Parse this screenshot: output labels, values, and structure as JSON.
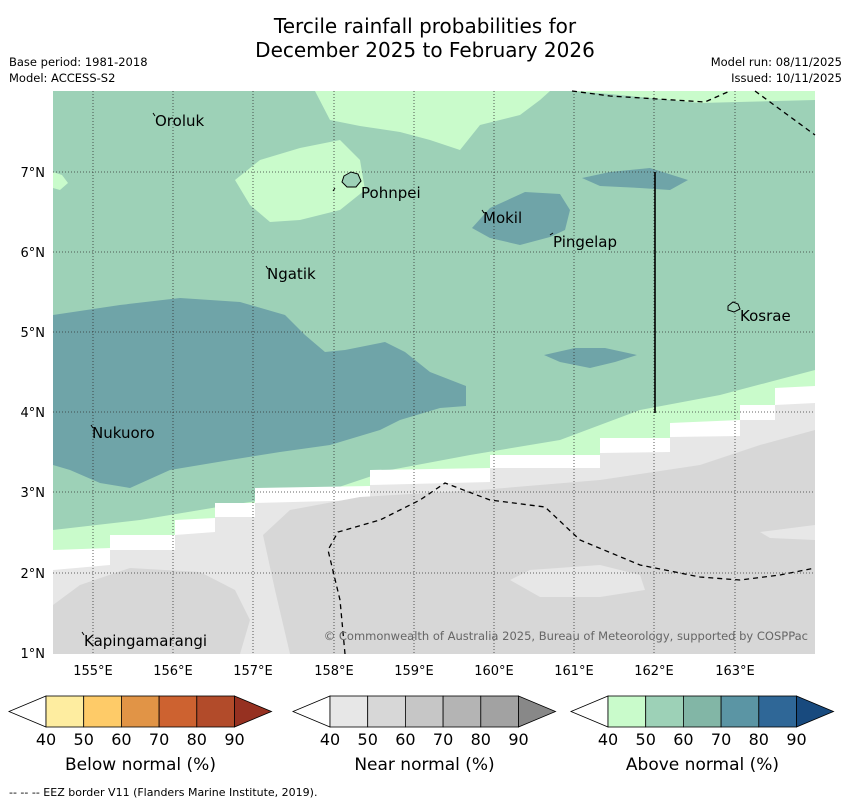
{
  "title": {
    "line1": "Tercile rainfall probabilities for",
    "line2": "December 2025 to February 2026"
  },
  "meta": {
    "base_period": "Base period: 1981-2018",
    "model": "Model: ACCESS-S2",
    "model_run": "Model run: 08/11/2025",
    "issued": "Issued: 10/11/2025"
  },
  "map": {
    "lat_labels": [
      "7°N",
      "6°N",
      "5°N",
      "4°N",
      "3°N",
      "2°N",
      "1°N"
    ],
    "lon_labels": [
      "155°E",
      "156°E",
      "157°E",
      "158°E",
      "159°E",
      "160°E",
      "161°E",
      "162°E",
      "163°E"
    ],
    "places": [
      "Oroluk",
      "Pohnpei",
      "Mokil",
      "Pingelap",
      "Ngatik",
      "Kosrae",
      "Nukuoro",
      "Kapingamarangi"
    ],
    "copyright": "© Commonwealth of Australia 2025, Bureau of Meteorology, supported by COSPPac"
  },
  "colorbars": {
    "below": {
      "label": "Below normal (%)",
      "ticks": [
        "40",
        "50",
        "60",
        "70",
        "80",
        "90"
      ],
      "colors": [
        "#ffffff",
        "#feeda0",
        "#fecb68",
        "#e19446",
        "#cd6230",
        "#b24b2a",
        "#963121"
      ]
    },
    "near": {
      "label": "Near normal (%)",
      "ticks": [
        "40",
        "50",
        "60",
        "70",
        "80",
        "90"
      ],
      "colors": [
        "#ffffff",
        "#e7e7e7",
        "#d7d7d7",
        "#c6c6c6",
        "#b4b4b4",
        "#a2a2a2",
        "#888888"
      ]
    },
    "above": {
      "label": "Above normal (%)",
      "ticks": [
        "40",
        "50",
        "60",
        "70",
        "80",
        "90"
      ],
      "colors": [
        "#ffffff",
        "#c9fbcb",
        "#9dd1b7",
        "#82b6a6",
        "#5b95a4",
        "#2f6797",
        "#184a7e"
      ]
    }
  },
  "footer": "--  --  -- EEZ border V11 (Flanders Marine Institute, 2019)."
}
